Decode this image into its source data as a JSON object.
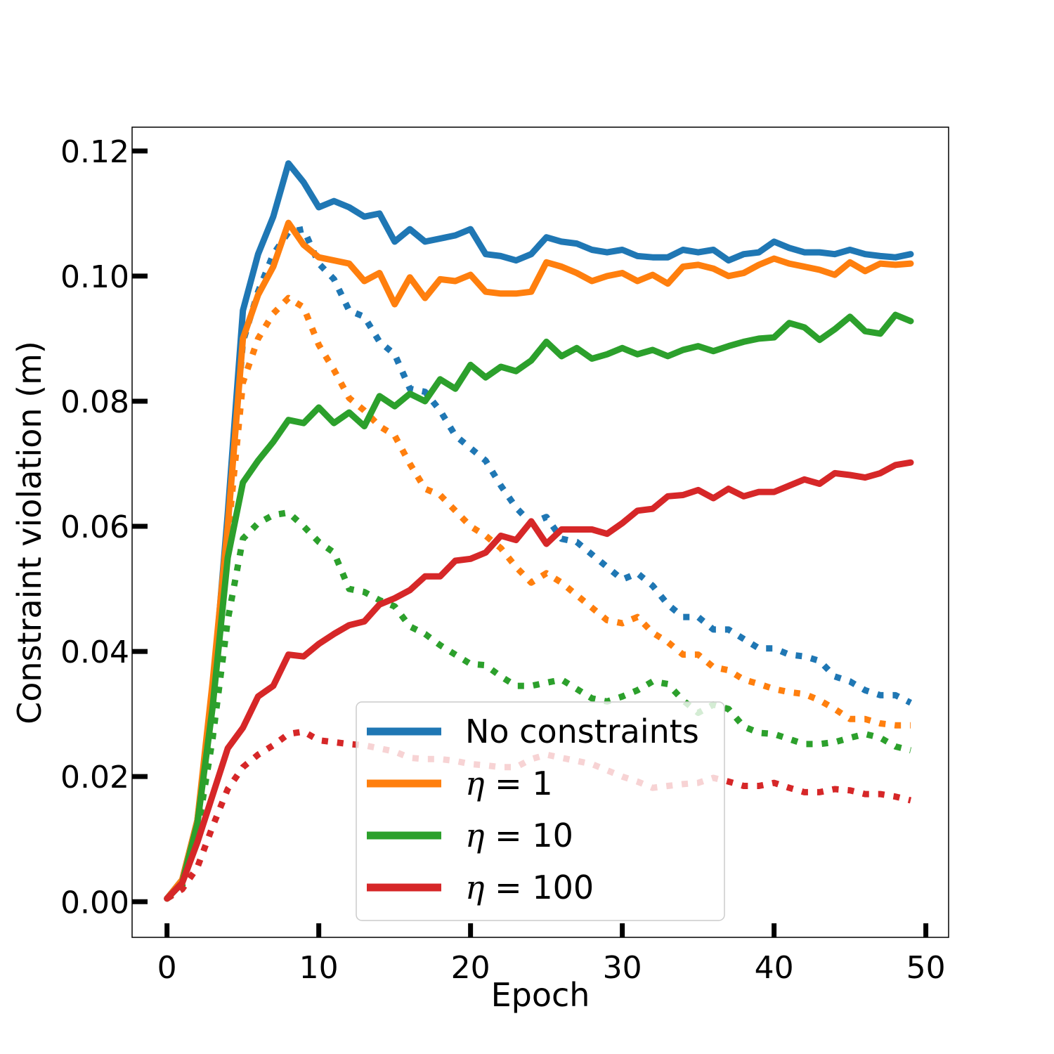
{
  "chart_data": {
    "type": "line",
    "title": "",
    "xlabel": "Epoch",
    "ylabel": "Constraint violation (m)",
    "xlim": [
      -2.3,
      51.5
    ],
    "ylim": [
      -0.0057,
      0.1238
    ],
    "xticks": [
      0,
      10,
      20,
      30,
      40,
      50
    ],
    "xtick_labels": [
      "0",
      "10",
      "20",
      "30",
      "40",
      "50"
    ],
    "yticks": [
      0.0,
      0.02,
      0.04,
      0.06,
      0.08,
      0.1,
      0.12
    ],
    "ytick_labels": [
      "0.00",
      "0.02",
      "0.04",
      "0.06",
      "0.08",
      "0.10",
      "0.12"
    ],
    "grid": false,
    "legend_position": "lower-center",
    "x": [
      0,
      1,
      2,
      3,
      4,
      5,
      6,
      7,
      8,
      9,
      10,
      11,
      12,
      13,
      14,
      15,
      16,
      17,
      18,
      19,
      20,
      21,
      22,
      23,
      24,
      25,
      26,
      27,
      28,
      29,
      30,
      31,
      32,
      33,
      34,
      35,
      36,
      37,
      38,
      39,
      40,
      41,
      42,
      43,
      44,
      45,
      46,
      47,
      48,
      49
    ],
    "series": [
      {
        "name": "No constraints",
        "legend_prefix": "",
        "legend_value": "",
        "color": "#1f77b4",
        "style": "solid",
        "values": [
          0.0005,
          0.0035,
          0.013,
          0.033,
          0.062,
          0.0945,
          0.1035,
          0.1095,
          0.118,
          0.115,
          0.111,
          0.112,
          0.111,
          0.1095,
          0.11,
          0.1055,
          0.1075,
          0.1055,
          0.106,
          0.1065,
          0.1075,
          0.1035,
          0.1032,
          0.1025,
          0.1035,
          0.1062,
          0.1055,
          0.1052,
          0.1042,
          0.1038,
          0.1042,
          0.1032,
          0.103,
          0.103,
          0.1042,
          0.1038,
          0.1042,
          0.1025,
          0.1035,
          0.1038,
          0.1055,
          0.1045,
          0.1038,
          0.1038,
          0.1035,
          0.1042,
          0.1035,
          0.1032,
          0.103,
          0.1035
        ]
      },
      {
        "name": "η = 1",
        "legend_prefix": "η",
        "legend_value": "1",
        "color": "#ff7f0e",
        "style": "solid",
        "values": [
          0.0005,
          0.0035,
          0.013,
          0.035,
          0.06,
          0.09,
          0.097,
          0.1015,
          0.1085,
          0.105,
          0.103,
          0.1025,
          0.102,
          0.0992,
          0.1005,
          0.0955,
          0.0998,
          0.0965,
          0.0995,
          0.0992,
          0.1002,
          0.0975,
          0.0972,
          0.0972,
          0.0975,
          0.1022,
          0.1015,
          0.1005,
          0.0992,
          0.1,
          0.1005,
          0.0992,
          0.1002,
          0.0988,
          0.1015,
          0.1018,
          0.1012,
          0.1,
          0.1005,
          0.1018,
          0.1028,
          0.102,
          0.1015,
          0.101,
          0.1002,
          0.1022,
          0.1008,
          0.102,
          0.1018,
          0.102
        ]
      },
      {
        "name": "η = 10",
        "legend_prefix": "η",
        "legend_value": "10",
        "color": "#2ca02c",
        "style": "solid",
        "values": [
          0.0005,
          0.003,
          0.0125,
          0.031,
          0.055,
          0.067,
          0.0705,
          0.0735,
          0.077,
          0.0765,
          0.079,
          0.0765,
          0.0782,
          0.076,
          0.0808,
          0.0792,
          0.0812,
          0.08,
          0.0835,
          0.082,
          0.0858,
          0.0838,
          0.0855,
          0.0848,
          0.0865,
          0.0895,
          0.0872,
          0.0885,
          0.0868,
          0.0875,
          0.0885,
          0.0875,
          0.0882,
          0.0872,
          0.0882,
          0.0888,
          0.088,
          0.0888,
          0.0895,
          0.09,
          0.0902,
          0.0925,
          0.0918,
          0.0898,
          0.0915,
          0.0935,
          0.0912,
          0.0908,
          0.0938,
          0.0928
        ]
      },
      {
        "name": "η = 100",
        "legend_prefix": "η",
        "legend_value": "100",
        "color": "#d62728",
        "style": "solid",
        "values": [
          0.0005,
          0.003,
          0.0095,
          0.017,
          0.0245,
          0.0278,
          0.0328,
          0.0345,
          0.0395,
          0.0392,
          0.0412,
          0.0428,
          0.0442,
          0.0448,
          0.0475,
          0.0485,
          0.0498,
          0.052,
          0.052,
          0.0545,
          0.0548,
          0.0558,
          0.0585,
          0.0578,
          0.0608,
          0.0572,
          0.0595,
          0.0595,
          0.0595,
          0.0588,
          0.0605,
          0.0625,
          0.0628,
          0.0648,
          0.065,
          0.0658,
          0.0645,
          0.066,
          0.0648,
          0.0655,
          0.0655,
          0.0665,
          0.0675,
          0.0668,
          0.0685,
          0.0682,
          0.0678,
          0.0685,
          0.0698,
          0.0702
        ]
      },
      {
        "name": "No constraints (dotted)",
        "color": "#1f77b4",
        "style": "dotted",
        "values": [
          0.0005,
          0.0028,
          0.012,
          0.032,
          0.06,
          0.0895,
          0.0975,
          0.1035,
          0.107,
          0.1075,
          0.102,
          0.0995,
          0.0945,
          0.0935,
          0.0895,
          0.0875,
          0.082,
          0.0815,
          0.0785,
          0.0745,
          0.0725,
          0.0705,
          0.0665,
          0.063,
          0.0605,
          0.0615,
          0.058,
          0.0575,
          0.0555,
          0.0535,
          0.0515,
          0.0525,
          0.0505,
          0.0475,
          0.0455,
          0.0455,
          0.0435,
          0.0435,
          0.042,
          0.0405,
          0.0405,
          0.0395,
          0.0392,
          0.0385,
          0.036,
          0.0352,
          0.0338,
          0.033,
          0.033,
          0.0318
        ]
      },
      {
        "name": "η = 1 (dotted)",
        "color": "#ff7f0e",
        "style": "dotted",
        "values": [
          0.0005,
          0.0028,
          0.012,
          0.031,
          0.058,
          0.083,
          0.09,
          0.094,
          0.0965,
          0.095,
          0.089,
          0.085,
          0.0805,
          0.0785,
          0.076,
          0.0745,
          0.07,
          0.066,
          0.065,
          0.0625,
          0.06,
          0.0585,
          0.0565,
          0.0535,
          0.051,
          0.0525,
          0.051,
          0.049,
          0.047,
          0.045,
          0.0445,
          0.0455,
          0.043,
          0.0415,
          0.0395,
          0.0395,
          0.0375,
          0.037,
          0.0355,
          0.0348,
          0.034,
          0.0335,
          0.0332,
          0.0322,
          0.0308,
          0.0292,
          0.0292,
          0.0285,
          0.0282,
          0.0282
        ]
      },
      {
        "name": "η = 10 (dotted)",
        "color": "#2ca02c",
        "style": "dotted",
        "values": [
          0.0005,
          0.0025,
          0.011,
          0.026,
          0.045,
          0.058,
          0.0605,
          0.0618,
          0.0622,
          0.06,
          0.0575,
          0.0558,
          0.05,
          0.0495,
          0.0482,
          0.0472,
          0.044,
          0.0428,
          0.041,
          0.0395,
          0.038,
          0.0378,
          0.036,
          0.0345,
          0.0345,
          0.035,
          0.0355,
          0.034,
          0.0325,
          0.032,
          0.0328,
          0.0338,
          0.0352,
          0.0348,
          0.0322,
          0.0302,
          0.0315,
          0.0308,
          0.028,
          0.027,
          0.0268,
          0.026,
          0.0252,
          0.0252,
          0.0255,
          0.0262,
          0.0268,
          0.0262,
          0.0248,
          0.0242
        ]
      },
      {
        "name": "η = 100 (dotted)",
        "color": "#d62728",
        "style": "dotted",
        "values": [
          0.0005,
          0.002,
          0.0055,
          0.012,
          0.018,
          0.0215,
          0.0235,
          0.025,
          0.0268,
          0.0272,
          0.0258,
          0.0255,
          0.0252,
          0.025,
          0.0245,
          0.024,
          0.023,
          0.0228,
          0.0228,
          0.0225,
          0.022,
          0.0218,
          0.0215,
          0.0215,
          0.0228,
          0.0235,
          0.023,
          0.0225,
          0.022,
          0.021,
          0.02,
          0.0192,
          0.0182,
          0.0185,
          0.0188,
          0.019,
          0.0198,
          0.0192,
          0.0185,
          0.0185,
          0.019,
          0.0182,
          0.0175,
          0.0175,
          0.018,
          0.0178,
          0.0172,
          0.0172,
          0.0168,
          0.0162
        ]
      }
    ]
  }
}
